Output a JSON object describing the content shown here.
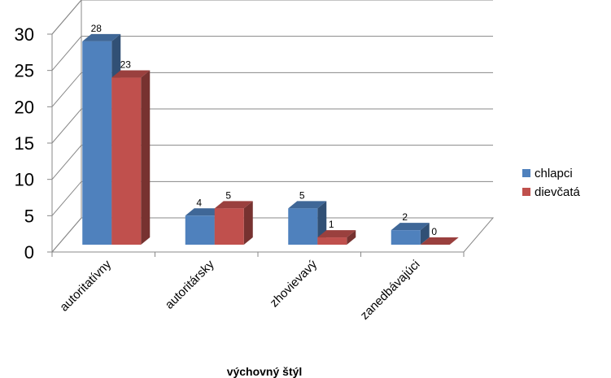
{
  "chart_data": {
    "type": "bar",
    "categories": [
      "autoritatívny",
      "autoritársky",
      "zhovievavý",
      "zanedbávajúci"
    ],
    "series": [
      {
        "name": "chlapci",
        "values": [
          28,
          4,
          5,
          2
        ],
        "color": "#4F81BD"
      },
      {
        "name": "dievčatá",
        "values": [
          23,
          5,
          1,
          0
        ],
        "color": "#C0504D"
      }
    ],
    "xlabel": "výchovný štýl",
    "ylabel": "",
    "ylim": [
      0,
      30
    ],
    "yticks": [
      0,
      5,
      10,
      15,
      20,
      25,
      30
    ],
    "grid": true,
    "legend": "right",
    "style": "3d-clustered-column"
  }
}
